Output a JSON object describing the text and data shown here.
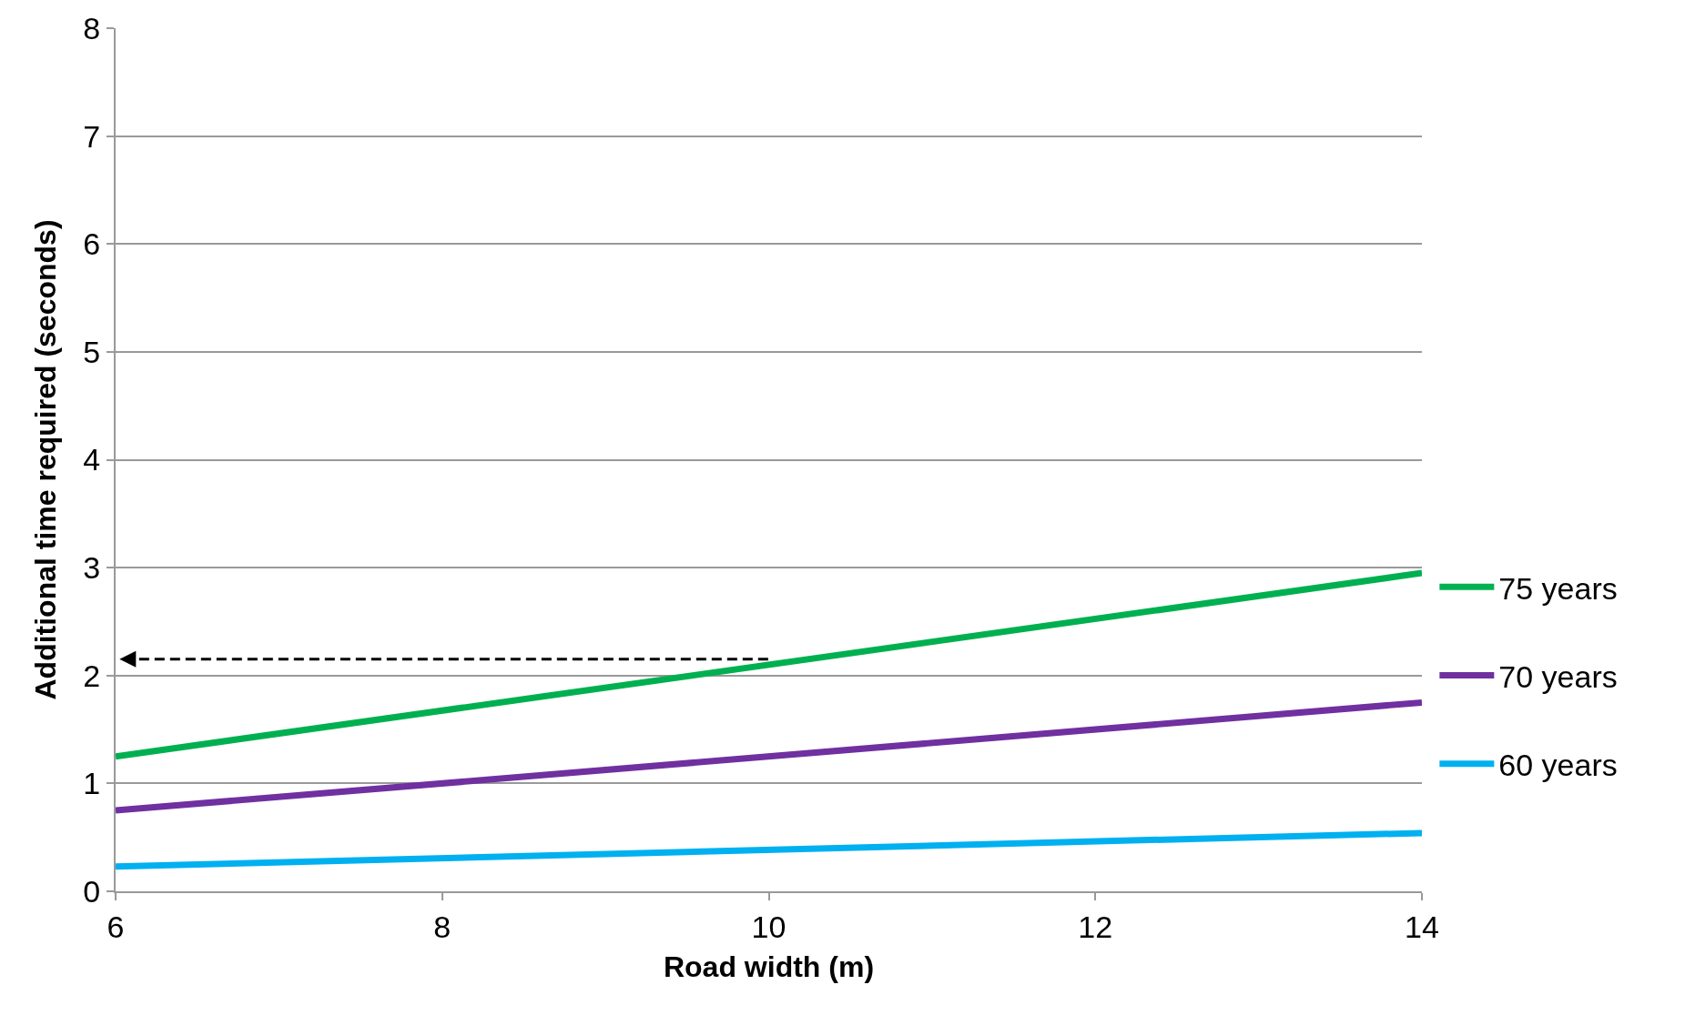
{
  "chart_data": {
    "type": "line",
    "xlabel": "Road width (m)",
    "ylabel": "Additional time required (seconds)",
    "x": [
      6,
      14
    ],
    "series": [
      {
        "name": "75 years",
        "color": "#00b050",
        "values": [
          1.25,
          2.95
        ]
      },
      {
        "name": "70 years",
        "color": "#7030a0",
        "values": [
          0.75,
          1.75
        ]
      },
      {
        "name": "60 years",
        "color": "#00b0f0",
        "values": [
          0.23,
          0.54
        ]
      }
    ],
    "xlim": [
      6,
      14
    ],
    "xticks": [
      6,
      8,
      10,
      12,
      14
    ],
    "ylim": [
      0,
      8
    ],
    "yticks": [
      0,
      1,
      2,
      3,
      4,
      5,
      6,
      7,
      8
    ],
    "grid": "y",
    "legend": "right",
    "line_style": "solid"
  }
}
